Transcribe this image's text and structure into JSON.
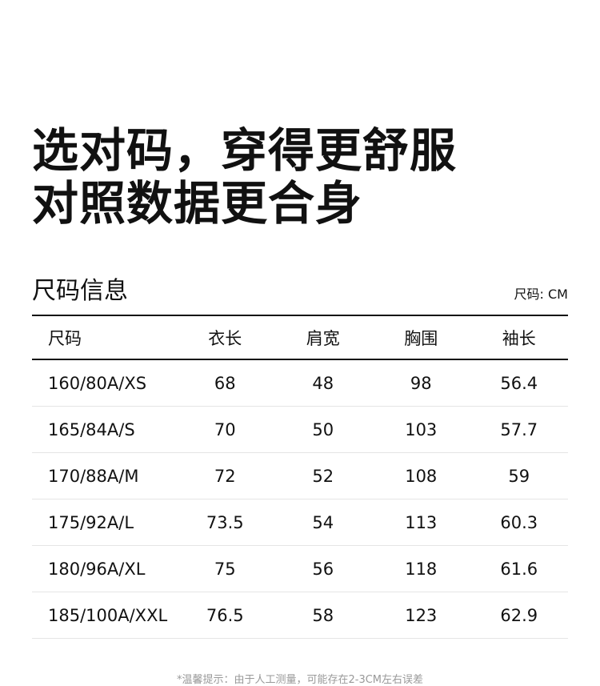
{
  "headline": {
    "line1": "选对码，穿得更舒服",
    "line2": "对照数据更合身"
  },
  "section_title": "尺码信息",
  "unit_label": "尺码: CM",
  "table": {
    "headers": [
      "尺码",
      "衣长",
      "肩宽",
      "胸围",
      "袖长"
    ],
    "rows": [
      [
        "160/80A/XS",
        "68",
        "48",
        "98",
        "56.4"
      ],
      [
        "165/84A/S",
        "70",
        "50",
        "103",
        "57.7"
      ],
      [
        "170/88A/M",
        "72",
        "52",
        "108",
        "59"
      ],
      [
        "175/92A/L",
        "73.5",
        "54",
        "113",
        "60.3"
      ],
      [
        "180/96A/XL",
        "75",
        "56",
        "118",
        "61.6"
      ],
      [
        "185/100A/XXL",
        "76.5",
        "58",
        "123",
        "62.9"
      ]
    ]
  },
  "note": "*温馨提示：由于人工测量，可能存在2-3CM左右误差"
}
